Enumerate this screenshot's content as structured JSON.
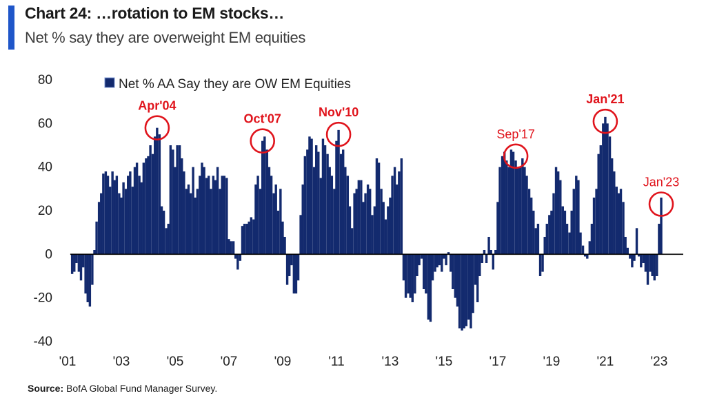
{
  "header": {
    "title": "Chart 24: …rotation to EM stocks…",
    "subtitle": "Net % say they are overweight EM equities"
  },
  "source": {
    "label": "Source:",
    "text": "BofA Global Fund Manager Survey."
  },
  "colors": {
    "bar": "#132a6e",
    "accent": "#1f56c9",
    "highlight": "#e0141c"
  },
  "chart_data": {
    "type": "bar",
    "title": "",
    "xlabel": "",
    "ylabel": "",
    "ylim": [
      -40,
      80
    ],
    "yticks": [
      -40,
      -20,
      0,
      20,
      40,
      60,
      80
    ],
    "xlim": [
      2001.0,
      2023.9
    ],
    "xticks": [
      {
        "label": "'01",
        "x": 2001
      },
      {
        "label": "'03",
        "x": 2003
      },
      {
        "label": "'05",
        "x": 2005
      },
      {
        "label": "'07",
        "x": 2007
      },
      {
        "label": "'09",
        "x": 2009
      },
      {
        "label": "'11",
        "x": 2011
      },
      {
        "label": "'13",
        "x": 2013
      },
      {
        "label": "'15",
        "x": 2015
      },
      {
        "label": "'17",
        "x": 2017
      },
      {
        "label": "'19",
        "x": 2019
      },
      {
        "label": "'21",
        "x": 2021
      },
      {
        "label": "'23",
        "x": 2023
      }
    ],
    "legend": {
      "position": "top-center",
      "label": "Net % AA Say they are OW EM Equities"
    },
    "series": [
      {
        "name": "Net % AA Say they are OW EM Equities",
        "points": [
          [
            2001.17,
            -9
          ],
          [
            2001.25,
            -8
          ],
          [
            2001.33,
            -4
          ],
          [
            2001.42,
            -8
          ],
          [
            2001.5,
            -12
          ],
          [
            2001.58,
            -6
          ],
          [
            2001.67,
            -18
          ],
          [
            2001.75,
            -22
          ],
          [
            2001.83,
            -24
          ],
          [
            2001.92,
            -14
          ],
          [
            2002.0,
            2
          ],
          [
            2002.08,
            15
          ],
          [
            2002.17,
            24
          ],
          [
            2002.25,
            28
          ],
          [
            2002.33,
            37
          ],
          [
            2002.42,
            38
          ],
          [
            2002.5,
            36
          ],
          [
            2002.58,
            31
          ],
          [
            2002.67,
            38
          ],
          [
            2002.75,
            34
          ],
          [
            2002.83,
            36
          ],
          [
            2002.92,
            28
          ],
          [
            2003.0,
            26
          ],
          [
            2003.08,
            33
          ],
          [
            2003.17,
            30
          ],
          [
            2003.25,
            36
          ],
          [
            2003.33,
            38
          ],
          [
            2003.42,
            31
          ],
          [
            2003.5,
            40
          ],
          [
            2003.58,
            42
          ],
          [
            2003.67,
            36
          ],
          [
            2003.75,
            33
          ],
          [
            2003.83,
            42
          ],
          [
            2003.92,
            44
          ],
          [
            2004.0,
            45
          ],
          [
            2004.08,
            50
          ],
          [
            2004.17,
            46
          ],
          [
            2004.25,
            54
          ],
          [
            2004.33,
            58
          ],
          [
            2004.42,
            55
          ],
          [
            2004.5,
            22
          ],
          [
            2004.58,
            20
          ],
          [
            2004.67,
            12
          ],
          [
            2004.75,
            14
          ],
          [
            2004.83,
            50
          ],
          [
            2004.92,
            48
          ],
          [
            2005.0,
            40
          ],
          [
            2005.08,
            50
          ],
          [
            2005.17,
            50
          ],
          [
            2005.25,
            44
          ],
          [
            2005.33,
            38
          ],
          [
            2005.42,
            30
          ],
          [
            2005.5,
            32
          ],
          [
            2005.58,
            28
          ],
          [
            2005.67,
            40
          ],
          [
            2005.75,
            26
          ],
          [
            2005.83,
            30
          ],
          [
            2005.92,
            36
          ],
          [
            2006.0,
            42
          ],
          [
            2006.08,
            40
          ],
          [
            2006.17,
            35
          ],
          [
            2006.25,
            36
          ],
          [
            2006.33,
            30
          ],
          [
            2006.42,
            36
          ],
          [
            2006.5,
            34
          ],
          [
            2006.58,
            40
          ],
          [
            2006.67,
            30
          ],
          [
            2006.75,
            36
          ],
          [
            2006.83,
            36
          ],
          [
            2006.92,
            35
          ],
          [
            2007.0,
            7
          ],
          [
            2007.08,
            6
          ],
          [
            2007.17,
            6
          ],
          [
            2007.25,
            -2
          ],
          [
            2007.33,
            -7
          ],
          [
            2007.42,
            -3
          ],
          [
            2007.5,
            13
          ],
          [
            2007.58,
            14
          ],
          [
            2007.67,
            14
          ],
          [
            2007.75,
            15
          ],
          [
            2007.83,
            17
          ],
          [
            2007.92,
            16
          ],
          [
            2008.0,
            32
          ],
          [
            2008.08,
            36
          ],
          [
            2008.17,
            30
          ],
          [
            2008.25,
            52
          ],
          [
            2008.33,
            54
          ],
          [
            2008.42,
            48
          ],
          [
            2008.5,
            40
          ],
          [
            2008.58,
            36
          ],
          [
            2008.67,
            28
          ],
          [
            2008.75,
            32
          ],
          [
            2008.83,
            20
          ],
          [
            2008.92,
            30
          ],
          [
            2009.0,
            15
          ],
          [
            2009.08,
            8
          ],
          [
            2009.17,
            -14
          ],
          [
            2009.25,
            -10
          ],
          [
            2009.33,
            -5
          ],
          [
            2009.42,
            -18
          ],
          [
            2009.5,
            -18
          ],
          [
            2009.58,
            -12
          ],
          [
            2009.67,
            18
          ],
          [
            2009.75,
            32
          ],
          [
            2009.83,
            45
          ],
          [
            2009.92,
            48
          ],
          [
            2010.0,
            54
          ],
          [
            2010.08,
            53
          ],
          [
            2010.17,
            40
          ],
          [
            2010.25,
            50
          ],
          [
            2010.33,
            47
          ],
          [
            2010.42,
            35
          ],
          [
            2010.5,
            53
          ],
          [
            2010.58,
            50
          ],
          [
            2010.67,
            46
          ],
          [
            2010.75,
            40
          ],
          [
            2010.83,
            36
          ],
          [
            2010.92,
            30
          ],
          [
            2011.0,
            52
          ],
          [
            2011.08,
            57
          ],
          [
            2011.17,
            46
          ],
          [
            2011.25,
            48
          ],
          [
            2011.33,
            40
          ],
          [
            2011.42,
            36
          ],
          [
            2011.5,
            22
          ],
          [
            2011.58,
            12
          ],
          [
            2011.67,
            28
          ],
          [
            2011.75,
            30
          ],
          [
            2011.83,
            34
          ],
          [
            2011.92,
            34
          ],
          [
            2012.0,
            24
          ],
          [
            2012.08,
            28
          ],
          [
            2012.17,
            32
          ],
          [
            2012.25,
            30
          ],
          [
            2012.33,
            18
          ],
          [
            2012.42,
            22
          ],
          [
            2012.5,
            44
          ],
          [
            2012.58,
            42
          ],
          [
            2012.67,
            30
          ],
          [
            2012.75,
            24
          ],
          [
            2012.83,
            16
          ],
          [
            2012.92,
            22
          ],
          [
            2013.0,
            26
          ],
          [
            2013.08,
            36
          ],
          [
            2013.17,
            40
          ],
          [
            2013.25,
            32
          ],
          [
            2013.33,
            38
          ],
          [
            2013.42,
            44
          ],
          [
            2013.5,
            -12
          ],
          [
            2013.58,
            -20
          ],
          [
            2013.67,
            -18
          ],
          [
            2013.75,
            -20
          ],
          [
            2013.83,
            -22
          ],
          [
            2013.92,
            -18
          ],
          [
            2014.0,
            -10
          ],
          [
            2014.08,
            -5
          ],
          [
            2014.17,
            -2
          ],
          [
            2014.25,
            -16
          ],
          [
            2014.33,
            -18
          ],
          [
            2014.42,
            -30
          ],
          [
            2014.5,
            -31
          ],
          [
            2014.58,
            -12
          ],
          [
            2014.67,
            -8
          ],
          [
            2014.75,
            -6
          ],
          [
            2014.83,
            -5
          ],
          [
            2014.92,
            -8
          ],
          [
            2015.0,
            -2
          ],
          [
            2015.08,
            -5
          ],
          [
            2015.17,
            1
          ],
          [
            2015.25,
            -8
          ],
          [
            2015.33,
            -16
          ],
          [
            2015.42,
            -20
          ],
          [
            2015.5,
            -24
          ],
          [
            2015.58,
            -34
          ],
          [
            2015.67,
            -35
          ],
          [
            2015.75,
            -34
          ],
          [
            2015.83,
            -33
          ],
          [
            2015.92,
            -30
          ],
          [
            2016.0,
            -34
          ],
          [
            2016.08,
            -27
          ],
          [
            2016.17,
            -14
          ],
          [
            2016.25,
            -22
          ],
          [
            2016.33,
            -10
          ],
          [
            2016.42,
            -4
          ],
          [
            2016.5,
            2
          ],
          [
            2016.58,
            -4
          ],
          [
            2016.67,
            8
          ],
          [
            2016.75,
            2
          ],
          [
            2016.83,
            -7
          ],
          [
            2016.92,
            2
          ],
          [
            2017.0,
            24
          ],
          [
            2017.08,
            40
          ],
          [
            2017.17,
            45
          ],
          [
            2017.25,
            47
          ],
          [
            2017.33,
            43
          ],
          [
            2017.42,
            40
          ],
          [
            2017.5,
            48
          ],
          [
            2017.58,
            47
          ],
          [
            2017.67,
            43
          ],
          [
            2017.75,
            40
          ],
          [
            2017.83,
            40
          ],
          [
            2017.92,
            44
          ],
          [
            2018.0,
            40
          ],
          [
            2018.08,
            36
          ],
          [
            2018.17,
            30
          ],
          [
            2018.25,
            26
          ],
          [
            2018.33,
            20
          ],
          [
            2018.42,
            12
          ],
          [
            2018.5,
            14
          ],
          [
            2018.58,
            -10
          ],
          [
            2018.67,
            -8
          ],
          [
            2018.75,
            8
          ],
          [
            2018.83,
            14
          ],
          [
            2018.92,
            18
          ],
          [
            2019.0,
            20
          ],
          [
            2019.08,
            28
          ],
          [
            2019.17,
            40
          ],
          [
            2019.25,
            38
          ],
          [
            2019.33,
            34
          ],
          [
            2019.42,
            22
          ],
          [
            2019.5,
            20
          ],
          [
            2019.58,
            14
          ],
          [
            2019.67,
            10
          ],
          [
            2019.75,
            20
          ],
          [
            2019.83,
            30
          ],
          [
            2019.92,
            36
          ],
          [
            2020.0,
            34
          ],
          [
            2020.08,
            10
          ],
          [
            2020.17,
            4
          ],
          [
            2020.25,
            -1
          ],
          [
            2020.33,
            -2
          ],
          [
            2020.42,
            6
          ],
          [
            2020.5,
            14
          ],
          [
            2020.58,
            26
          ],
          [
            2020.67,
            30
          ],
          [
            2020.75,
            46
          ],
          [
            2020.83,
            50
          ],
          [
            2020.92,
            60
          ],
          [
            2021.0,
            63
          ],
          [
            2021.08,
            60
          ],
          [
            2021.17,
            54
          ],
          [
            2021.25,
            44
          ],
          [
            2021.33,
            38
          ],
          [
            2021.42,
            31
          ],
          [
            2021.5,
            28
          ],
          [
            2021.58,
            30
          ],
          [
            2021.67,
            24
          ],
          [
            2021.75,
            8
          ],
          [
            2021.83,
            3
          ],
          [
            2021.92,
            -2
          ],
          [
            2022.0,
            -6
          ],
          [
            2022.08,
            -3
          ],
          [
            2022.17,
            12
          ],
          [
            2022.25,
            -1
          ],
          [
            2022.33,
            -6
          ],
          [
            2022.42,
            -4
          ],
          [
            2022.5,
            -8
          ],
          [
            2022.58,
            -14
          ],
          [
            2022.67,
            -8
          ],
          [
            2022.75,
            -10
          ],
          [
            2022.83,
            -12
          ],
          [
            2022.92,
            -10
          ],
          [
            2023.0,
            14
          ],
          [
            2023.08,
            26
          ]
        ]
      }
    ],
    "annotations": [
      {
        "label": "Apr'04",
        "x": 2004.33,
        "y": 58,
        "bold": true
      },
      {
        "label": "Oct'07",
        "x": 2008.25,
        "y": 52,
        "bold": true
      },
      {
        "label": "Nov'10",
        "x": 2011.08,
        "y": 55,
        "bold": true
      },
      {
        "label": "Sep'17",
        "x": 2017.67,
        "y": 45,
        "bold": false
      },
      {
        "label": "Jan'21",
        "x": 2021.0,
        "y": 61,
        "bold": true
      },
      {
        "label": "Jan'23",
        "x": 2023.08,
        "y": 23,
        "bold": false
      }
    ]
  }
}
